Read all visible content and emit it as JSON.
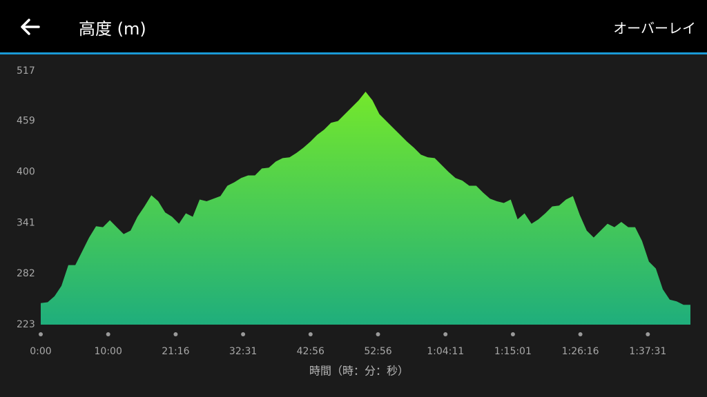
{
  "header": {
    "title": "高度 (m)",
    "action": "オーバーレイ"
  },
  "chart_data": {
    "type": "area",
    "x_label": "時間（時：分：秒）",
    "xtick_labels": [
      "0:00",
      "10:00",
      "21:16",
      "32:31",
      "42:56",
      "52:56",
      "1:04:11",
      "1:15:01",
      "1:26:16",
      "1:37:31"
    ],
    "values": [
      248,
      249,
      256,
      268,
      292,
      292,
      308,
      324,
      337,
      336,
      344,
      336,
      328,
      332,
      348,
      360,
      373,
      366,
      353,
      348,
      340,
      352,
      348,
      368,
      366,
      369,
      372,
      384,
      388,
      393,
      396,
      396,
      404,
      405,
      412,
      416,
      417,
      422,
      428,
      435,
      443,
      449,
      457,
      459,
      467,
      475,
      483,
      493,
      483,
      467,
      459,
      451,
      443,
      435,
      428,
      420,
      417,
      416,
      408,
      400,
      393,
      390,
      384,
      384,
      376,
      369,
      366,
      364,
      368,
      345,
      352,
      340,
      345,
      352,
      360,
      361,
      368,
      372,
      350,
      332,
      324,
      332,
      340,
      336,
      342,
      336,
      336,
      320,
      296,
      288,
      264,
      252,
      250,
      246,
      246
    ],
    "ylim": [
      223,
      517
    ],
    "yticks": [
      517,
      459,
      400,
      341,
      282,
      223
    ]
  }
}
